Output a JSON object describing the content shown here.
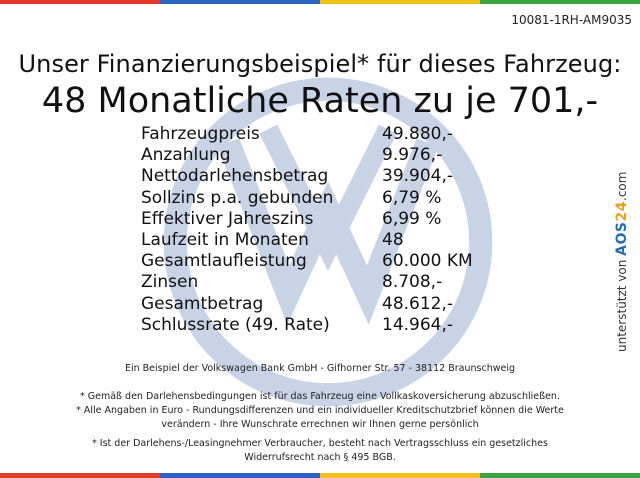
{
  "ref": "10081-1RH-AM9035",
  "headline": "Unser Finanzierungsbeispiel* für dieses Fahrzeug:",
  "subheadline": "48 Monatliche Raten zu je 701,-",
  "rows": [
    {
      "label": "Fahrzeugpreis",
      "value": "49.880,-"
    },
    {
      "label": "Anzahlung",
      "value": "9.976,-"
    },
    {
      "label": "Nettodarlehensbetrag",
      "value": "39.904,-"
    },
    {
      "label": "Sollzins p.a. gebunden",
      "value": "6,79 %"
    },
    {
      "label": "Effektiver Jahreszins",
      "value": "6,99 %"
    },
    {
      "label": "Laufzeit in Monaten",
      "value": "48"
    },
    {
      "label": "Gesamtlaufleistung",
      "value": "60.000 KM"
    },
    {
      "label": "Zinsen",
      "value": "8.708,-"
    },
    {
      "label": "Gesamtbetrag",
      "value": "48.612,-"
    },
    {
      "label": "Schlussrate (49. Rate)",
      "value": "14.964,-"
    }
  ],
  "side": {
    "prefix": "unterstützt von ",
    "brand_a": "AOS",
    "brand_n": "24",
    "suffix": ".com"
  },
  "notes": {
    "bank": "Ein Beispiel der Volkswagen Bank GmbH - Gifhorner Str. 57 - 38112 Braunschweig",
    "insurance": "* Gemäß den Darlehensbedingungen ist für das Fahrzeug eine Vollkaskoversicherung abzuschließen.",
    "amounts_1": "* Alle Angaben in Euro - Rundungsdifferenzen und ein individueller Kreditschutzbrief können die Werte",
    "amounts_2": "verändern - Ihre Wunschrate errechnen wir Ihnen gerne persönlich",
    "consumer_1": "* Ist der Darlehens-/Leasingnehmer Verbraucher, besteht nach Vertragsschluss ein gesetzliches",
    "consumer_2": "Widerrufsrecht nach § 495 BGB."
  },
  "colors": {
    "bar": [
      "#e53c2a",
      "#2b64c4",
      "#f3c21a",
      "#3ba43c"
    ],
    "watermark": "#c9d3e6"
  }
}
